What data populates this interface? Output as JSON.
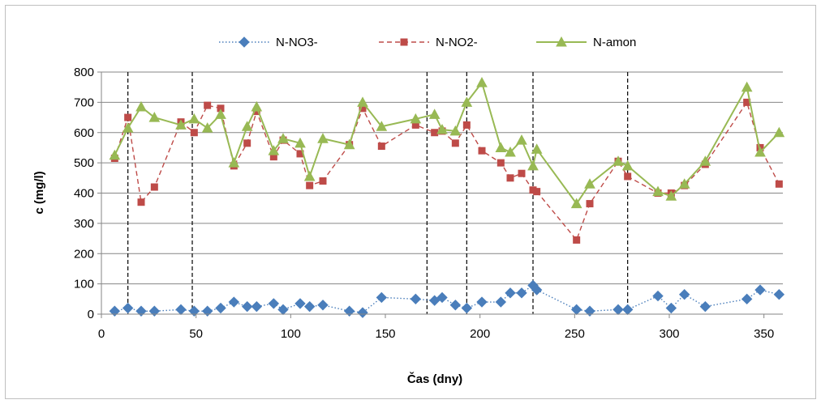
{
  "chart_data": {
    "type": "line",
    "xlabel": "Čas (dny)",
    "ylabel": "c (mg/l)",
    "xlim": [
      0,
      360
    ],
    "ylim": [
      0,
      800
    ],
    "xticks": [
      0,
      50,
      100,
      150,
      200,
      250,
      300,
      350
    ],
    "yticks": [
      0,
      100,
      200,
      300,
      400,
      500,
      600,
      700,
      800
    ],
    "grid": "horizontal",
    "legend": "top-center",
    "vlines": [
      14,
      48,
      172,
      193,
      228,
      278
    ],
    "series": [
      {
        "name": "N-NO3-",
        "color": "#4a7ebb",
        "marker": "diamond",
        "dash": "dotted",
        "x": [
          7,
          14,
          21,
          28,
          42,
          49,
          56,
          63,
          70,
          77,
          82,
          91,
          96,
          105,
          110,
          117,
          131,
          138,
          148,
          166,
          176,
          180,
          187,
          193,
          201,
          211,
          216,
          222,
          228,
          230,
          251,
          258,
          273,
          278,
          294,
          301,
          308,
          319,
          341,
          348,
          358
        ],
        "y": [
          10,
          20,
          10,
          10,
          15,
          10,
          10,
          20,
          40,
          25,
          25,
          35,
          15,
          35,
          25,
          30,
          10,
          5,
          55,
          50,
          45,
          55,
          30,
          20,
          40,
          40,
          70,
          70,
          95,
          80,
          15,
          10,
          15,
          15,
          60,
          20,
          65,
          25,
          50,
          80,
          65
        ]
      },
      {
        "name": "N-NO2-",
        "color": "#be4b48",
        "marker": "square",
        "dash": "dashed",
        "x": [
          7,
          14,
          21,
          28,
          42,
          49,
          56,
          63,
          70,
          77,
          82,
          91,
          96,
          105,
          110,
          117,
          131,
          138,
          148,
          166,
          176,
          180,
          187,
          193,
          201,
          211,
          216,
          222,
          228,
          230,
          251,
          258,
          273,
          278,
          294,
          301,
          308,
          319,
          341,
          348,
          358
        ],
        "y": [
          515,
          650,
          370,
          420,
          635,
          600,
          690,
          680,
          490,
          565,
          670,
          520,
          575,
          530,
          425,
          440,
          560,
          680,
          555,
          625,
          600,
          605,
          565,
          625,
          540,
          500,
          450,
          465,
          410,
          405,
          245,
          365,
          505,
          455,
          400,
          400,
          425,
          495,
          700,
          550,
          430
        ]
      },
      {
        "name": "N-amon",
        "color": "#98b954",
        "marker": "triangle",
        "dash": "solid",
        "x": [
          7,
          14,
          21,
          28,
          42,
          49,
          56,
          63,
          70,
          77,
          82,
          91,
          96,
          105,
          110,
          117,
          131,
          138,
          148,
          166,
          176,
          180,
          187,
          193,
          201,
          211,
          216,
          222,
          228,
          230,
          251,
          258,
          273,
          278,
          294,
          301,
          308,
          319,
          341,
          348,
          358
        ],
        "y": [
          525,
          615,
          685,
          650,
          625,
          645,
          615,
          660,
          500,
          620,
          685,
          540,
          580,
          565,
          455,
          580,
          560,
          700,
          620,
          645,
          660,
          610,
          605,
          700,
          765,
          550,
          535,
          575,
          490,
          545,
          365,
          430,
          505,
          490,
          405,
          390,
          430,
          505,
          750,
          535,
          600
        ]
      }
    ]
  }
}
